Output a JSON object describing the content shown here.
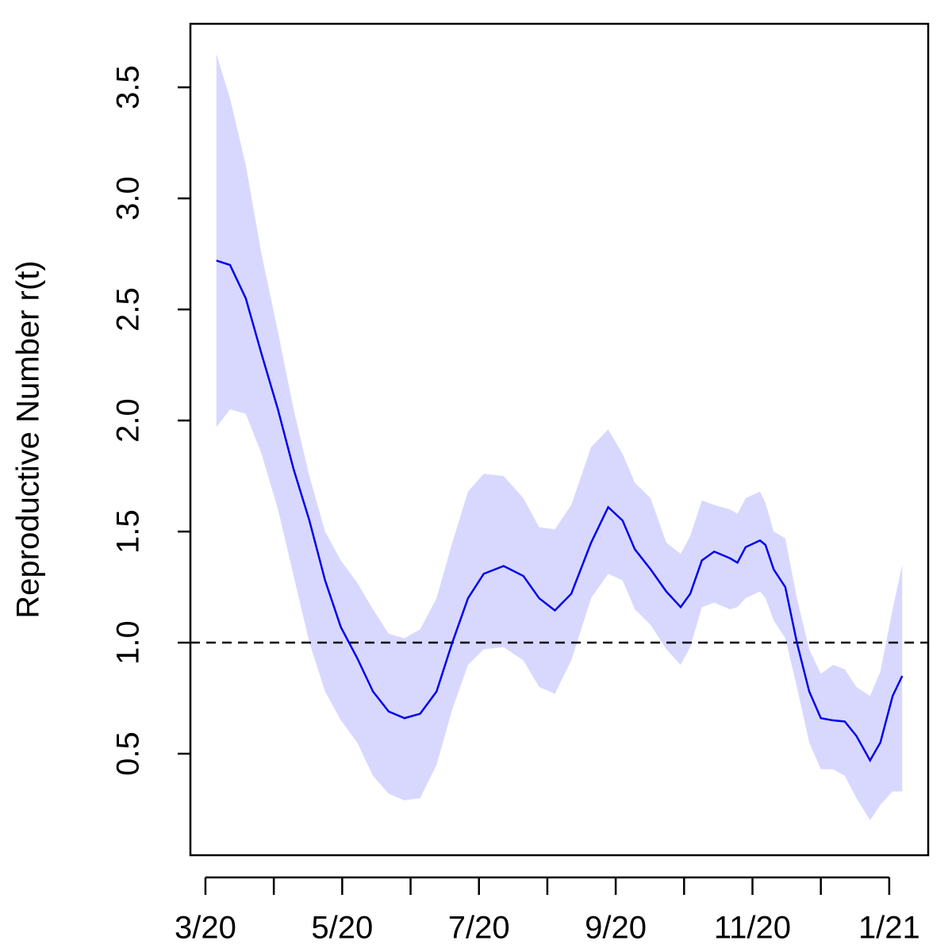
{
  "chart_data": {
    "type": "line_band",
    "y_label": "Reproductive Number r(t)",
    "xlim": [
      -0.22,
      10.57
    ],
    "xticks": [
      {
        "value": 0,
        "label": "3/20"
      },
      {
        "value": 1,
        "label": null
      },
      {
        "value": 2,
        "label": "5/20"
      },
      {
        "value": 3,
        "label": null
      },
      {
        "value": 4,
        "label": "7/20"
      },
      {
        "value": 5,
        "label": null
      },
      {
        "value": 6,
        "label": "9/20"
      },
      {
        "value": 7,
        "label": null
      },
      {
        "value": 8,
        "label": "11/20"
      },
      {
        "value": 9,
        "label": null
      },
      {
        "value": 10,
        "label": "1/21"
      }
    ],
    "ylim": [
      0.043,
      3.786
    ],
    "yticks": [
      0.5,
      {
        "value": 1,
        "label": "1.0"
      },
      1.5,
      {
        "value": 2,
        "label": "2.0"
      },
      2.5,
      {
        "value": 3,
        "label": "3.0"
      },
      3.5
    ],
    "hline": 1,
    "color": "#0000ee",
    "band_color": "#d8d8ff",
    "x": [
      0.16,
      0.36,
      0.59,
      0.82,
      1.06,
      1.29,
      1.52,
      1.75,
      1.98,
      2.22,
      2.45,
      2.68,
      2.91,
      3.14,
      3.38,
      3.61,
      3.84,
      4.07,
      4.36,
      4.65,
      4.88,
      5.11,
      5.35,
      5.64,
      5.89,
      6.1,
      6.28,
      6.51,
      6.74,
      6.95,
      7.09,
      7.26,
      7.44,
      7.67,
      7.78,
      7.9,
      8.11,
      8.19,
      8.31,
      8.48,
      8.65,
      8.83,
      9.0,
      9.18,
      9.35,
      9.52,
      9.72,
      9.87,
      10.05,
      10.19
    ],
    "values": [
      2.72,
      2.7,
      2.55,
      2.3,
      2.05,
      1.78,
      1.55,
      1.28,
      1.07,
      0.93,
      0.78,
      0.69,
      0.66,
      0.68,
      0.78,
      1.0,
      1.2,
      1.31,
      1.345,
      1.3,
      1.2,
      1.145,
      1.22,
      1.45,
      1.61,
      1.55,
      1.42,
      1.33,
      1.23,
      1.16,
      1.22,
      1.37,
      1.41,
      1.38,
      1.36,
      1.43,
      1.46,
      1.44,
      1.33,
      1.25,
      1.0,
      0.78,
      0.66,
      0.65,
      0.645,
      0.58,
      0.47,
      0.55,
      0.76,
      0.85
    ],
    "upper": [
      3.65,
      3.45,
      3.15,
      2.75,
      2.4,
      2.05,
      1.75,
      1.5,
      1.37,
      1.27,
      1.15,
      1.04,
      1.02,
      1.06,
      1.2,
      1.45,
      1.68,
      1.76,
      1.75,
      1.65,
      1.52,
      1.51,
      1.62,
      1.88,
      1.96,
      1.85,
      1.72,
      1.65,
      1.45,
      1.4,
      1.48,
      1.64,
      1.62,
      1.6,
      1.58,
      1.65,
      1.68,
      1.63,
      1.5,
      1.47,
      1.2,
      0.97,
      0.86,
      0.9,
      0.88,
      0.8,
      0.76,
      0.87,
      1.15,
      1.35
    ],
    "lower": [
      1.97,
      2.05,
      2.03,
      1.85,
      1.6,
      1.3,
      1.0,
      0.78,
      0.65,
      0.55,
      0.4,
      0.32,
      0.29,
      0.3,
      0.45,
      0.7,
      0.9,
      0.97,
      0.98,
      0.92,
      0.8,
      0.77,
      0.92,
      1.2,
      1.31,
      1.28,
      1.15,
      1.08,
      0.97,
      0.9,
      0.98,
      1.16,
      1.18,
      1.15,
      1.16,
      1.2,
      1.23,
      1.2,
      1.1,
      1.02,
      0.8,
      0.55,
      0.43,
      0.43,
      0.4,
      0.3,
      0.2,
      0.27,
      0.33,
      0.33
    ]
  }
}
